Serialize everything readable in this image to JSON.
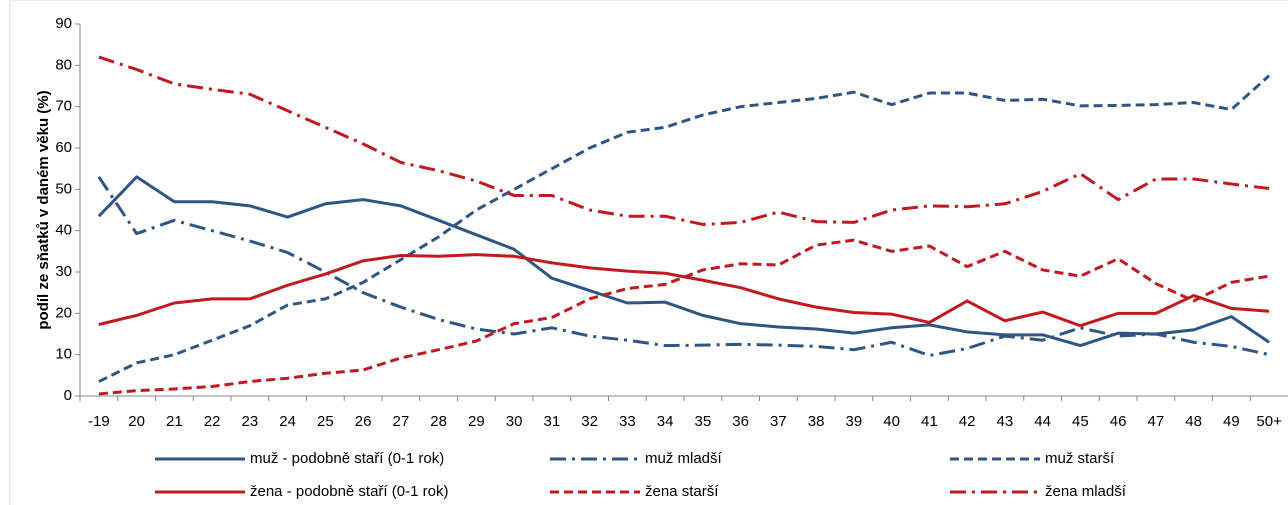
{
  "chart_data": {
    "type": "line",
    "y_label": "podíl ze sňatků v daném věku (%)",
    "categories": [
      "-19",
      "20",
      "21",
      "22",
      "23",
      "24",
      "25",
      "26",
      "27",
      "28",
      "29",
      "30",
      "31",
      "32",
      "33",
      "34",
      "35",
      "36",
      "37",
      "38",
      "39",
      "40",
      "41",
      "42",
      "43",
      "44",
      "45",
      "46",
      "47",
      "48",
      "49",
      "50+"
    ],
    "ylim": [
      0,
      90
    ],
    "yticks": [
      0,
      10,
      20,
      30,
      40,
      50,
      60,
      70,
      80,
      90
    ],
    "grid": false,
    "legend": "bottom",
    "series": [
      {
        "name": "muž - podobně staří (0-1 rok)",
        "color": "#2e5583",
        "dash": "solid",
        "values": [
          43.5,
          53,
          47,
          47,
          46,
          43.3,
          46.5,
          47.5,
          46,
          42.5,
          39,
          35.5,
          28.5,
          25.5,
          22.5,
          22.7,
          19.5,
          17.5,
          16.7,
          16.2,
          15.2,
          16.5,
          17.2,
          15.5,
          14.8,
          14.8,
          12.2,
          15.2,
          15,
          16,
          19.2,
          13
        ]
      },
      {
        "name": "muž mladší",
        "color": "#2e5583",
        "dash": "dashdot",
        "values": [
          53,
          39.3,
          42.5,
          40,
          37.5,
          34.7,
          30,
          25,
          21.5,
          18.5,
          16.2,
          15,
          16.5,
          14.5,
          13.5,
          12.2,
          12.3,
          12.5,
          12.3,
          12,
          11.2,
          13,
          9.8,
          11.5,
          14.5,
          13.5,
          16.5,
          14.5,
          15,
          13,
          12,
          10
        ]
      },
      {
        "name": "muž starší",
        "color": "#2e5583",
        "dash": "dashed",
        "values": [
          3.5,
          8,
          10,
          13.5,
          17,
          22,
          23.5,
          27.5,
          33,
          38.5,
          45,
          50,
          55,
          60,
          63.8,
          65,
          68,
          70,
          71,
          72,
          73.5,
          70.5,
          73.3,
          73.3,
          71.5,
          71.8,
          70.2,
          70.3,
          70.5,
          71,
          69.3,
          77.5
        ]
      },
      {
        "name": "žena - podobně staří (0-1 rok)",
        "color": "#c0191f",
        "dash": "solid",
        "values": [
          17.3,
          19.5,
          22.5,
          23.5,
          23.5,
          26.8,
          29.5,
          32.7,
          34,
          33.8,
          34.2,
          33.8,
          32.2,
          31,
          30.2,
          29.7,
          28,
          26.2,
          23.5,
          21.5,
          20.2,
          19.8,
          17.8,
          23,
          18.2,
          20.3,
          17,
          20,
          20,
          24.3,
          21.2,
          20.5
        ]
      },
      {
        "name": "žena starší",
        "color": "#c0191f",
        "dash": "dashed",
        "values": [
          0.5,
          1.3,
          1.7,
          2.3,
          3.5,
          4.3,
          5.5,
          6.3,
          9.2,
          11.2,
          13.3,
          17.5,
          19,
          23.5,
          26,
          27,
          30.5,
          32,
          31.7,
          36.5,
          37.7,
          35,
          36.3,
          31.3,
          35,
          30.5,
          29,
          33.2,
          27.2,
          23,
          27.5,
          29
        ]
      },
      {
        "name": "žena mladší",
        "color": "#c0191f",
        "dash": "dashdot",
        "values": [
          82,
          79,
          75.5,
          74.2,
          73,
          69,
          65,
          61,
          56.5,
          54.5,
          52,
          48.5,
          48.5,
          45,
          43.5,
          43.5,
          41.5,
          42,
          44.5,
          42.2,
          42,
          45,
          46,
          45.8,
          46.5,
          49.5,
          53.8,
          47.5,
          52.5,
          52.5,
          51.3,
          50.2
        ]
      }
    ]
  }
}
